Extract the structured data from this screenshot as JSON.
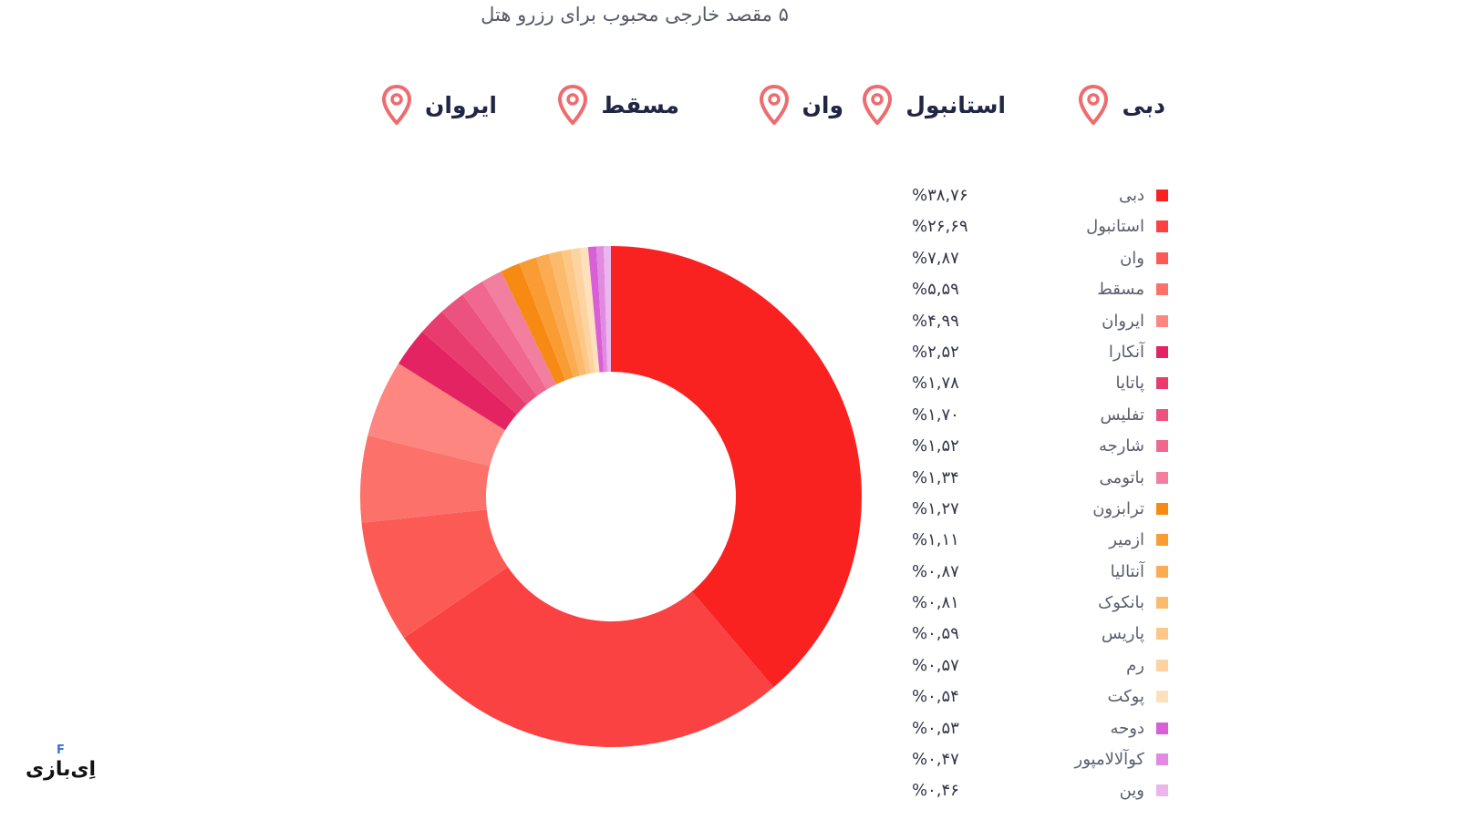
{
  "header": {
    "title": "۵ مقصد خارجی محبوب برای رزرو هتل"
  },
  "top_destinations": [
    {
      "name": "دبی",
      "icon": "map-pin-icon"
    },
    {
      "name": "استانبول",
      "icon": "map-pin-icon"
    },
    {
      "name": "وان",
      "icon": "map-pin-icon"
    },
    {
      "name": "مسقط",
      "icon": "map-pin-icon"
    },
    {
      "name": "ایروان",
      "icon": "map-pin-icon"
    }
  ],
  "pin_color": "#ee6b6f",
  "logo": {
    "text": "اِی‌بازی",
    "badge": "F"
  },
  "chart_data": {
    "type": "pie",
    "title": "۵ مقصد خارجی محبوب برای رزرو هتل",
    "legend_position": "right",
    "donut": true,
    "slices": [
      {
        "label": "دبی",
        "value": 38.76,
        "value_label": "%۳۸,۷۶",
        "color": "#fa2121"
      },
      {
        "label": "استانبول",
        "value": 26.69,
        "value_label": "%۲۶,۶۹",
        "color": "#fb4242"
      },
      {
        "label": "وان",
        "value": 7.87,
        "value_label": "%۷,۸۷",
        "color": "#fc5b55"
      },
      {
        "label": "مسقط",
        "value": 5.59,
        "value_label": "%۵,۵۹",
        "color": "#fc716a"
      },
      {
        "label": "ایروان",
        "value": 4.99,
        "value_label": "%۴,۹۹",
        "color": "#fd8680"
      },
      {
        "label": "آنکارا",
        "value": 2.52,
        "value_label": "%۲,۵۲",
        "color": "#e42462"
      },
      {
        "label": "پاتایا",
        "value": 1.78,
        "value_label": "%۱,۷۸",
        "color": "#e83c6f"
      },
      {
        "label": "تفلیس",
        "value": 1.7,
        "value_label": "%۱,۷۰",
        "color": "#ec527f"
      },
      {
        "label": "شارجه",
        "value": 1.52,
        "value_label": "%۱,۵۲",
        "color": "#f0678f"
      },
      {
        "label": "باتومی",
        "value": 1.34,
        "value_label": "%۱,۳۴",
        "color": "#f27ea0"
      },
      {
        "label": "ترابزون",
        "value": 1.27,
        "value_label": "%۱,۲۷",
        "color": "#f78a12"
      },
      {
        "label": "ازمیر",
        "value": 1.11,
        "value_label": "%۱,۱۱",
        "color": "#f99c34"
      },
      {
        "label": "آنتالیا",
        "value": 0.87,
        "value_label": "%۰,۸۷",
        "color": "#fbac52"
      },
      {
        "label": "بانکوک",
        "value": 0.81,
        "value_label": "%۰,۸۱",
        "color": "#fcba6d"
      },
      {
        "label": "پاریس",
        "value": 0.59,
        "value_label": "%۰,۵۹",
        "color": "#fdc787"
      },
      {
        "label": "رم",
        "value": 0.57,
        "value_label": "%۰,۵۷",
        "color": "#fdd3a2"
      },
      {
        "label": "پوکت",
        "value": 0.54,
        "value_label": "%۰,۵۴",
        "color": "#fee0bd"
      },
      {
        "label": "دوحه",
        "value": 0.53,
        "value_label": "%۰,۵۳",
        "color": "#d85fd6"
      },
      {
        "label": "کوآلالامپور",
        "value": 0.47,
        "value_label": "%۰,۴۷",
        "color": "#e08ae0"
      },
      {
        "label": "وین",
        "value": 0.46,
        "value_label": "%۰,۴۶",
        "color": "#eab6ec"
      }
    ]
  }
}
